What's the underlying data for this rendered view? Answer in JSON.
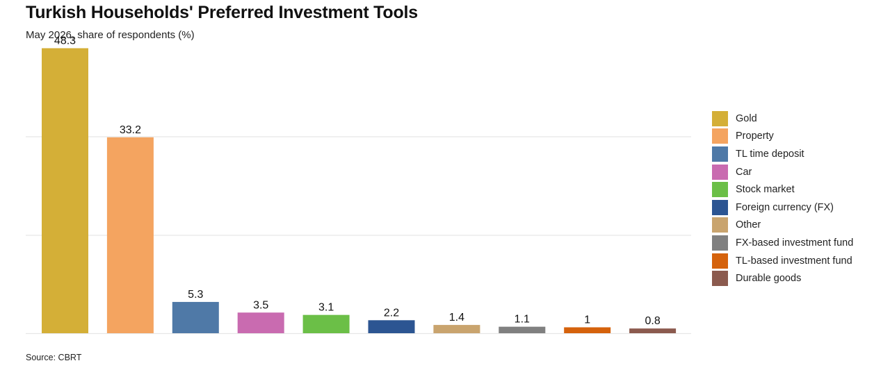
{
  "chart_data": {
    "type": "bar",
    "title": "Turkish Households' Preferred Investment Tools",
    "subtitle": "May 2026, share of respondents (%)",
    "source": "Source: CBRT",
    "ylim": [
      0,
      50
    ],
    "grid": true,
    "legend_position": "right",
    "categories": [
      "Gold",
      "Property",
      "TL time deposit",
      "Car",
      "Stock market",
      "Foreign currency (FX)",
      "Other",
      "FX-based investment fund",
      "TL-based investment fund",
      "Durable goods"
    ],
    "values": [
      48.3,
      33.2,
      5.3,
      3.5,
      3.1,
      2.2,
      1.4,
      1.1,
      1,
      0.8
    ],
    "value_labels": [
      "48.3",
      "33.2",
      "5.3",
      "3.5",
      "3.1",
      "2.2",
      "1.4",
      "1.1",
      "1",
      "0.8"
    ],
    "colors": [
      "#D4AF37",
      "#F4A460",
      "#4F79A7",
      "#C96BB0",
      "#6BBF47",
      "#2C5592",
      "#C9A46E",
      "#808080",
      "#D5620C",
      "#8B5A4E"
    ]
  }
}
